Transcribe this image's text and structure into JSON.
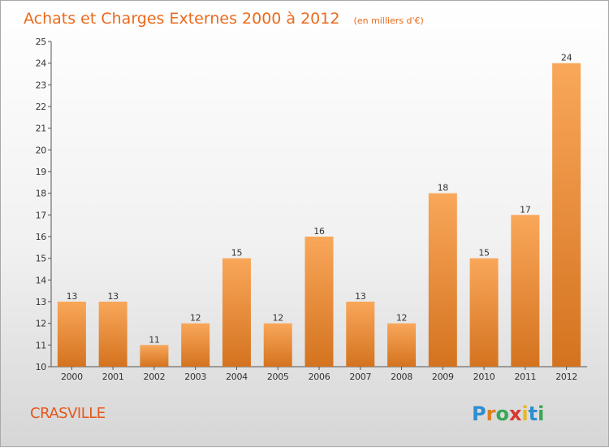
{
  "chart_data": {
    "type": "bar",
    "title": "Achats et Charges Externes 2000 à 2012",
    "subtitle": "(en milliers d'€)",
    "categories": [
      "2000",
      "2001",
      "2002",
      "2003",
      "2004",
      "2005",
      "2006",
      "2007",
      "2008",
      "2009",
      "2010",
      "2011",
      "2012"
    ],
    "values": [
      13,
      13,
      11,
      12,
      15,
      12,
      16,
      13,
      12,
      18,
      15,
      17,
      24
    ],
    "ylim": [
      10,
      25
    ],
    "yticks": [
      "10",
      "11",
      "12",
      "13",
      "14",
      "15",
      "16",
      "17",
      "18",
      "19",
      "20",
      "21",
      "22",
      "23",
      "24",
      "25"
    ],
    "grid": false,
    "bar_color_top": "#f9a75a",
    "bar_color_bottom": "#d4731f"
  },
  "commune": "CRASVILLE",
  "logo": {
    "letters": [
      "P",
      "r",
      "o",
      "x",
      "i",
      "t",
      "i"
    ],
    "colors": [
      "#2c8fd0",
      "#e07d1d",
      "#3aa655",
      "#d63a2e",
      "#e8b920",
      "#2c8fd0",
      "#3aa655"
    ]
  }
}
